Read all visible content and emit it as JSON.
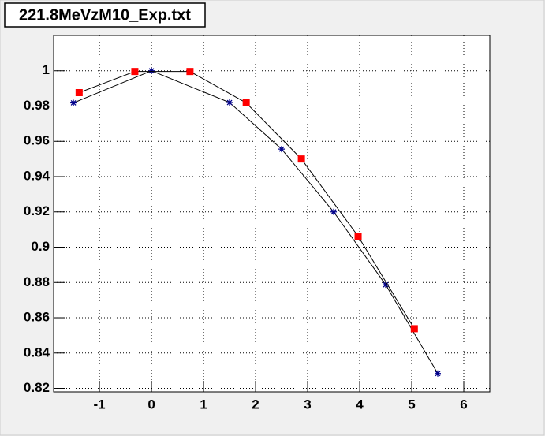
{
  "chart_data": {
    "type": "scatter",
    "title": "221.8MeVzM10_Exp.txt",
    "series": [
      {
        "color": "#00008b",
        "marker": "star",
        "x": [
          -1.5,
          0,
          1.5,
          2.5,
          3.5,
          4.5,
          5.5
        ],
        "values": [
          0.9818,
          1.0,
          0.982,
          0.9556,
          0.92,
          0.8787,
          0.8284
        ]
      },
      {
        "color": "#ff0000",
        "marker": "square",
        "x": [
          -1.39,
          -0.32,
          0.74,
          1.82,
          2.88,
          3.97,
          5.05
        ],
        "values": [
          0.9876,
          0.9996,
          0.9996,
          0.9818,
          0.95,
          0.9062,
          0.8538
        ]
      }
    ],
    "xlim": [
      -1.88,
      6.5
    ],
    "ylim": [
      0.818,
      1.02
    ],
    "xticks": [
      -1,
      0,
      1,
      2,
      3,
      4,
      5,
      6
    ],
    "yticks": [
      0.82,
      0.84,
      0.86,
      0.88,
      0.9,
      0.92,
      0.94,
      0.96,
      0.98,
      1
    ],
    "grid": true
  }
}
